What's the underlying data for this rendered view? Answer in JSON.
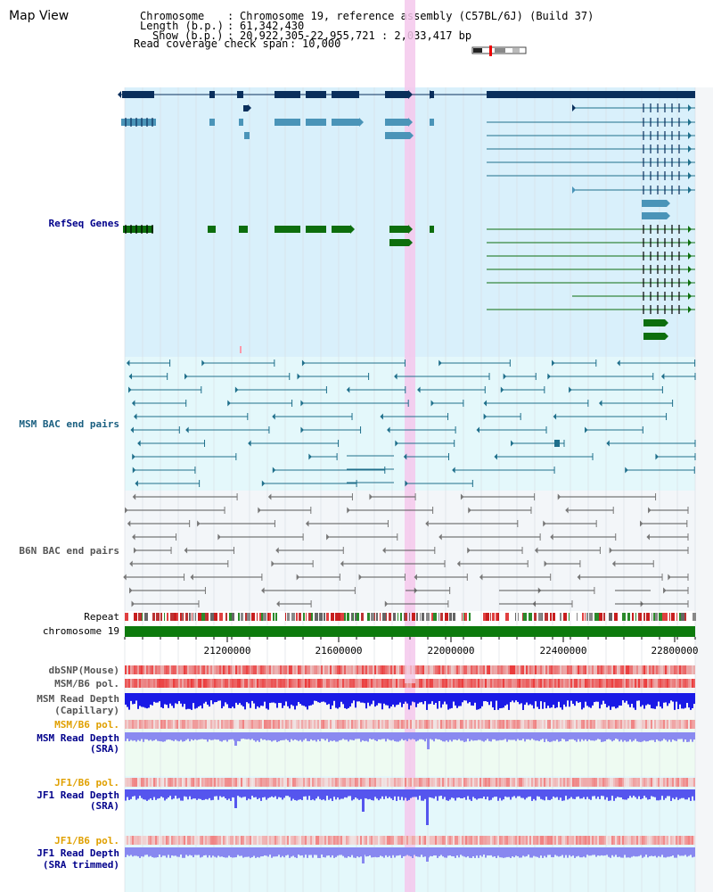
{
  "header": {
    "title": "Map View",
    "chromosome_label": "Chromosome",
    "chromosome_value": "Chromosome 19, reference assembly (C57BL/6J) (Build 37)",
    "length_label": "Length (b.p.)",
    "length_value": "61,342,430",
    "show_label": "Show (b.p.)",
    "show_value": "20,922,305-22,955,721 : 2,033,417 bp",
    "span_label": "Read coverage check span",
    "span_value": "10,000"
  },
  "tracks": {
    "refseq": "RefSeq Genes",
    "msm_bac": "MSM BAC end pairs",
    "b6n_bac": "B6N BAC end pairs",
    "repeat": "Repeat",
    "chromosome": "chromosome 19",
    "dbsnp": "dbSNP(Mouse)",
    "msm_b6_pol_1": "MSM/B6 pol.",
    "msm_read_depth_cap_1": "MSM Read Depth",
    "msm_read_depth_cap_2": "(Capillary)",
    "msm_b6_pol_2": "MSM/B6 pol.",
    "msm_read_depth_sra_1": "MSM Read Depth",
    "msm_read_depth_sra_2": "(SRA)",
    "jf1_b6_pol_1": "JF1/B6 pol.",
    "jf1_read_depth_sra_1": "JF1 Read Depth",
    "jf1_read_depth_sra_2": "(SRA)",
    "jf1_b6_pol_2": "JF1/B6 pol.",
    "jf1_read_depth_trim_1": "JF1 Read Depth",
    "jf1_read_depth_trim_2": "(SRA trimmed)"
  },
  "axis": {
    "ticks": [
      "21200000",
      "21600000",
      "22000000",
      "22400000",
      "22800000"
    ]
  },
  "colors": {
    "refseq_bg": "#d9f0fb",
    "msm_bg": "#e4f8fb",
    "b6n_bg": "#f3f6f9",
    "gene_dark": "#0a2f5c",
    "gene_mid": "#4a94b8",
    "gene_green": "#0d6e0d",
    "msm_pair": "#1f6f8b",
    "b6n_pair": "#555555",
    "chromosome_bar": "#0d7a0d",
    "highlight": "#f5c8ec",
    "label_blue": "#00008b",
    "label_msm": "#1a5f80",
    "label_gray": "#555555",
    "label_orange": "#e0a000"
  }
}
